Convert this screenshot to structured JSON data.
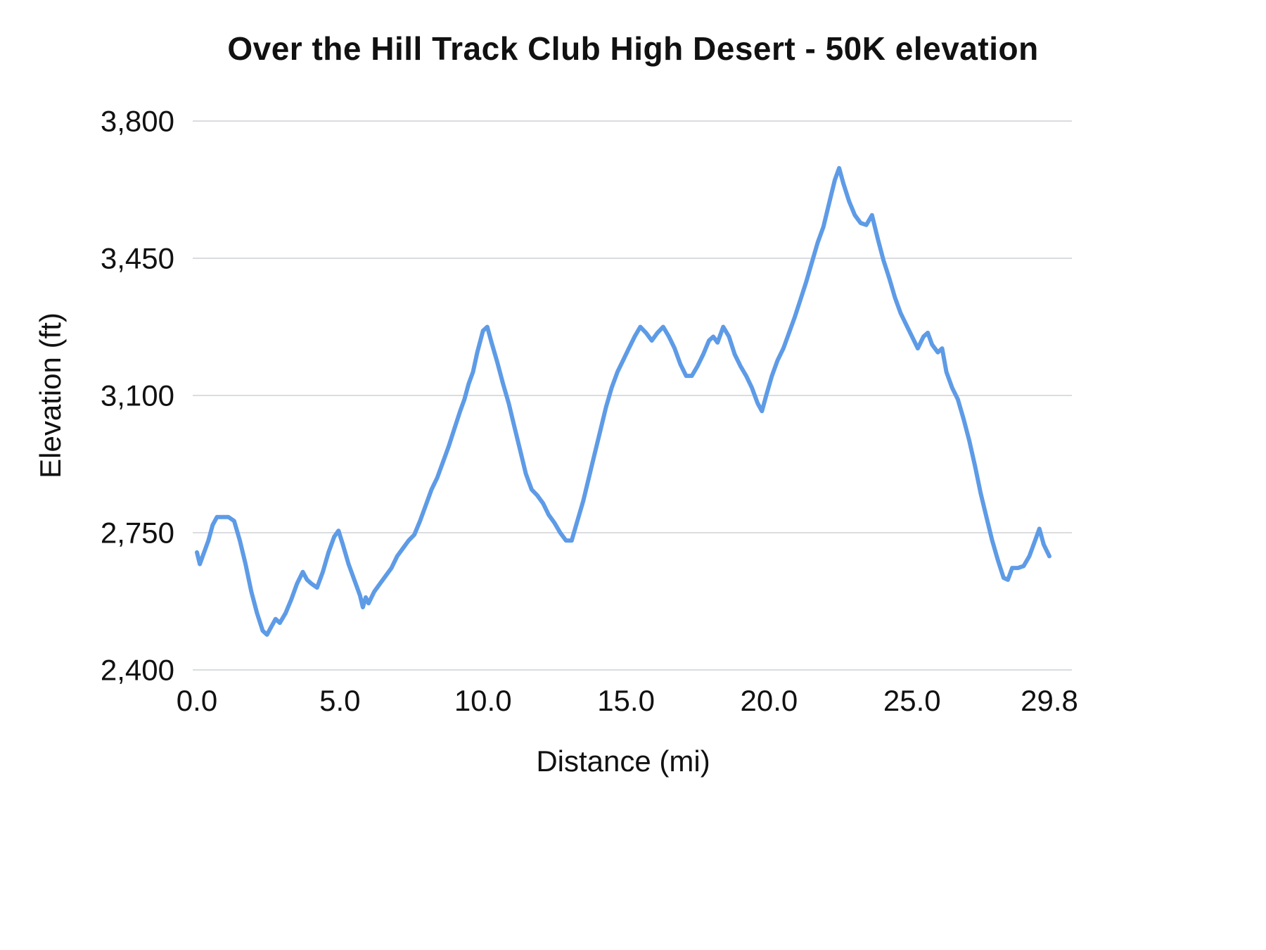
{
  "chart_data": {
    "type": "line",
    "title": "Over the Hill Track Club High Desert - 50K elevation",
    "xlabel": "Distance (mi)",
    "ylabel": "Elevation (ft)",
    "xlim": [
      0,
      29.8
    ],
    "ylim": [
      2400,
      3800
    ],
    "grid": true,
    "legend_position": "none",
    "x_ticks": [
      {
        "label": "0.0",
        "value": 0
      },
      {
        "label": "5.0",
        "value": 5
      },
      {
        "label": "10.0",
        "value": 10
      },
      {
        "label": "15.0",
        "value": 15
      },
      {
        "label": "20.0",
        "value": 20
      },
      {
        "label": "25.0",
        "value": 25
      },
      {
        "label": "29.8",
        "value": 29.8
      }
    ],
    "y_ticks": [
      {
        "label": "2,400",
        "value": 2400
      },
      {
        "label": "2,750",
        "value": 2750
      },
      {
        "label": "3,100",
        "value": 3100
      },
      {
        "label": "3,450",
        "value": 3450
      },
      {
        "label": "3,800",
        "value": 3800
      }
    ],
    "colors": {
      "line": "#5e9be6",
      "grid": "#dadce0",
      "text": "#111111",
      "title": "#111111",
      "background": "#ffffff"
    },
    "series": [
      {
        "name": "Elevation",
        "x": [
          0.0,
          0.1,
          0.25,
          0.4,
          0.55,
          0.7,
          0.9,
          1.1,
          1.3,
          1.5,
          1.7,
          1.9,
          2.1,
          2.3,
          2.45,
          2.6,
          2.75,
          2.9,
          3.1,
          3.3,
          3.5,
          3.7,
          3.85,
          4.0,
          4.2,
          4.4,
          4.6,
          4.8,
          4.95,
          5.1,
          5.3,
          5.5,
          5.7,
          5.8,
          5.9,
          6.0,
          6.2,
          6.4,
          6.6,
          6.8,
          7.0,
          7.2,
          7.4,
          7.6,
          7.8,
          8.0,
          8.2,
          8.4,
          8.6,
          8.8,
          9.0,
          9.2,
          9.35,
          9.5,
          9.65,
          9.8,
          10.0,
          10.15,
          10.3,
          10.5,
          10.7,
          10.9,
          11.1,
          11.3,
          11.5,
          11.7,
          11.9,
          12.1,
          12.3,
          12.5,
          12.7,
          12.9,
          13.1,
          13.3,
          13.5,
          13.7,
          13.9,
          14.1,
          14.3,
          14.5,
          14.7,
          14.9,
          15.1,
          15.3,
          15.5,
          15.7,
          15.9,
          16.1,
          16.3,
          16.5,
          16.7,
          16.9,
          17.1,
          17.3,
          17.5,
          17.7,
          17.9,
          18.05,
          18.2,
          18.4,
          18.6,
          18.8,
          19.0,
          19.2,
          19.4,
          19.6,
          19.75,
          19.9,
          20.1,
          20.3,
          20.5,
          20.7,
          20.9,
          21.1,
          21.3,
          21.5,
          21.7,
          21.9,
          22.1,
          22.3,
          22.45,
          22.6,
          22.8,
          23.0,
          23.2,
          23.4,
          23.6,
          23.8,
          24.0,
          24.2,
          24.4,
          24.6,
          24.8,
          25.0,
          25.2,
          25.4,
          25.55,
          25.7,
          25.9,
          26.05,
          26.2,
          26.4,
          26.6,
          26.8,
          27.0,
          27.2,
          27.4,
          27.6,
          27.8,
          28.0,
          28.2,
          28.35,
          28.5,
          28.7,
          28.9,
          29.1,
          29.3,
          29.45,
          29.6,
          29.8
        ],
        "y": [
          2700,
          2670,
          2700,
          2730,
          2770,
          2790,
          2790,
          2790,
          2780,
          2730,
          2670,
          2600,
          2545,
          2500,
          2490,
          2510,
          2530,
          2520,
          2545,
          2580,
          2620,
          2650,
          2630,
          2620,
          2610,
          2650,
          2700,
          2740,
          2755,
          2720,
          2670,
          2630,
          2590,
          2560,
          2585,
          2570,
          2600,
          2620,
          2640,
          2660,
          2690,
          2710,
          2730,
          2745,
          2780,
          2820,
          2860,
          2890,
          2930,
          2970,
          3015,
          3060,
          3090,
          3130,
          3160,
          3210,
          3265,
          3275,
          3235,
          3185,
          3130,
          3080,
          3020,
          2960,
          2900,
          2860,
          2845,
          2825,
          2795,
          2775,
          2750,
          2730,
          2730,
          2780,
          2830,
          2890,
          2950,
          3010,
          3070,
          3120,
          3160,
          3190,
          3220,
          3250,
          3275,
          3260,
          3240,
          3260,
          3275,
          3250,
          3220,
          3180,
          3150,
          3150,
          3175,
          3205,
          3240,
          3250,
          3235,
          3275,
          3250,
          3205,
          3175,
          3150,
          3120,
          3080,
          3060,
          3100,
          3150,
          3190,
          3220,
          3260,
          3300,
          3345,
          3390,
          3440,
          3490,
          3530,
          3590,
          3650,
          3680,
          3640,
          3595,
          3560,
          3540,
          3535,
          3560,
          3500,
          3445,
          3400,
          3350,
          3310,
          3280,
          3250,
          3220,
          3250,
          3260,
          3230,
          3210,
          3220,
          3160,
          3120,
          3090,
          3040,
          2985,
          2920,
          2850,
          2790,
          2730,
          2680,
          2635,
          2630,
          2660,
          2660,
          2665,
          2690,
          2730,
          2760,
          2720,
          2690
        ]
      }
    ]
  }
}
